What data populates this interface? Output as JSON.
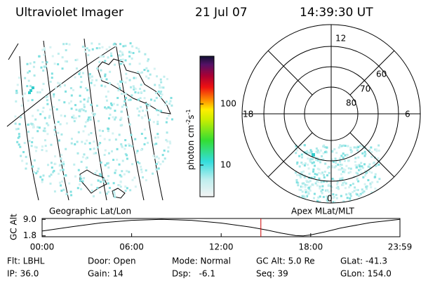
{
  "header": {
    "title": "Ultraviolet Imager",
    "date": "21 Jul 07",
    "time": "14:39:30 UT"
  },
  "map": {
    "label": "Geographic Lat/Lon"
  },
  "colorbar": {
    "label_base": "photon cm",
    "label_exp1": "-2",
    "label_mid": "s",
    "label_exp2": "-1",
    "ticks": [
      "100",
      "10"
    ]
  },
  "polar": {
    "label": "Apex MLat/MLT",
    "mlt_labels": {
      "top": "12",
      "left": "18",
      "right": "6",
      "bottom": "0"
    },
    "lat_labels": [
      "80",
      "70",
      "60"
    ]
  },
  "altitude_plot": {
    "ylabel": "GC Alt",
    "x": [
      0,
      2,
      4,
      6,
      8,
      10,
      12,
      14,
      15,
      16,
      17,
      17.5,
      18,
      19,
      20,
      22,
      23.98
    ],
    "values": [
      3.9,
      5.8,
      7.5,
      8.6,
      9.0,
      8.6,
      7.4,
      5.6,
      4.4,
      3.0,
      1.9,
      1.8,
      2.2,
      3.6,
      5.2,
      7.6,
      9.0
    ],
    "xlim": [
      0,
      23.98
    ],
    "ylim": [
      1.4,
      9.4
    ],
    "yticks": [
      {
        "value": 9.0,
        "label": "9.0"
      },
      {
        "value": 1.8,
        "label": "1.8"
      }
    ],
    "xticks": [
      {
        "value": 0,
        "label": "00:00"
      },
      {
        "value": 6,
        "label": "06:00"
      },
      {
        "value": 12,
        "label": "12:00"
      },
      {
        "value": 18,
        "label": "18:00"
      },
      {
        "value": 23.98,
        "label": "23:59"
      }
    ],
    "marker_time": 14.66,
    "marker_color": "#cc0000"
  },
  "footer": {
    "rows": [
      [
        "Flt: LBHL",
        "Door: Open",
        "Mode: Normal",
        "GC Alt: 5.0 Re",
        "GLat: -41.3"
      ],
      [
        "IP: 36.0",
        "Gain: 14",
        "Dsp:   -6.1",
        "Seq: 39",
        "GLon: 154.0"
      ]
    ]
  }
}
